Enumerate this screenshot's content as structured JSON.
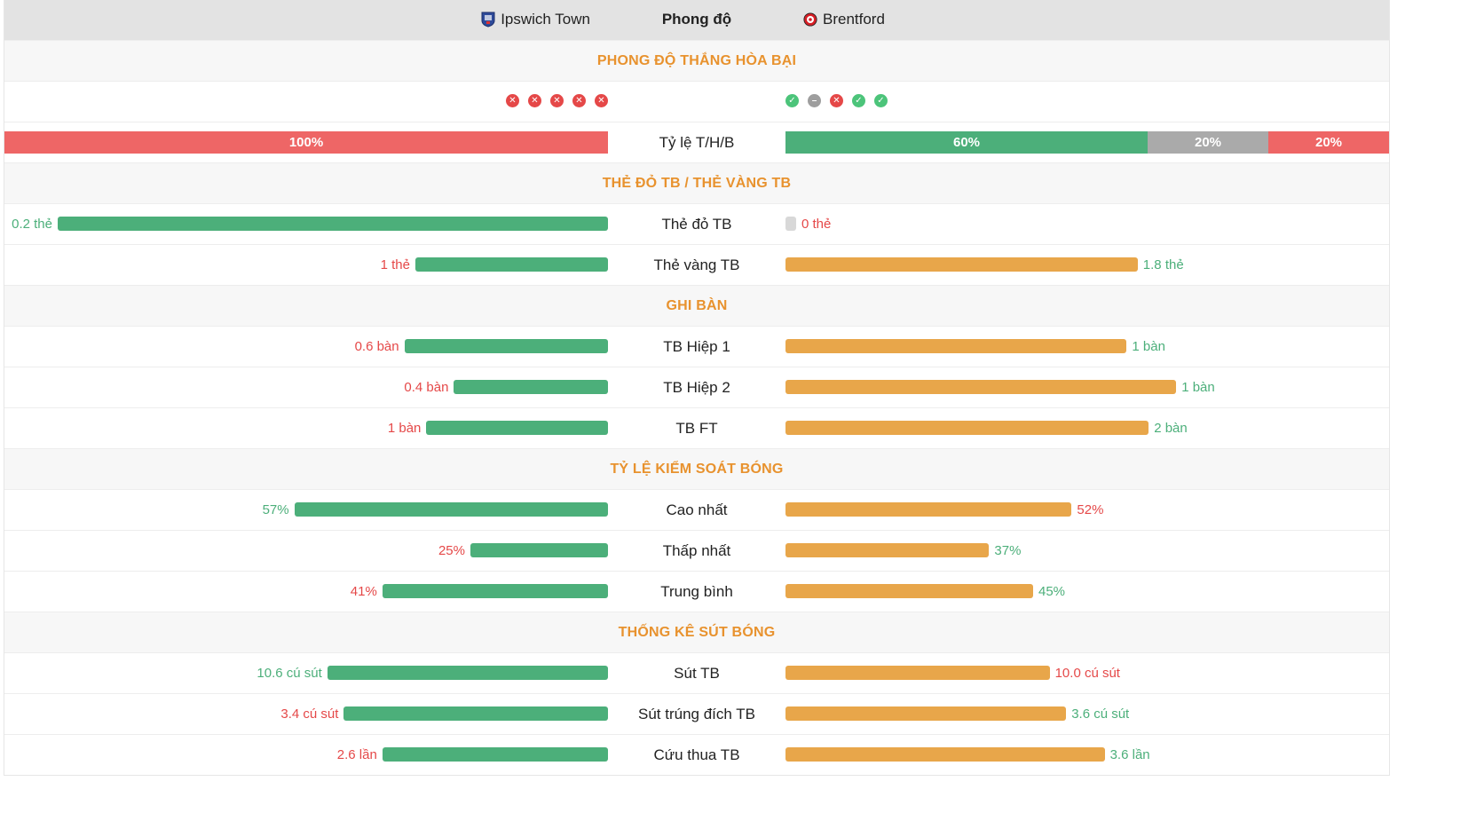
{
  "header": {
    "home_team": "Ipswich Town",
    "center_title": "Phong độ",
    "away_team": "Brentford"
  },
  "colors": {
    "accent_orange": "#e8922e",
    "bar_green": "#4caf7a",
    "bar_orange": "#e8a64a",
    "value_red": "#e54848",
    "loss_red": "#ee6666",
    "draw_grey": "#aaaaaa"
  },
  "form": {
    "section_title": "PHONG ĐỘ THẮNG HÒA BẠI",
    "home": [
      "L",
      "L",
      "L",
      "L",
      "L"
    ],
    "away": [
      "W",
      "D",
      "L",
      "W",
      "W"
    ],
    "ratio_label": "Tỷ lệ T/H/B",
    "home_ratio": [
      {
        "result": "L",
        "percent": 100,
        "label": "100%"
      }
    ],
    "away_ratio": [
      {
        "result": "W",
        "percent": 60,
        "label": "60%"
      },
      {
        "result": "D",
        "percent": 20,
        "label": "20%"
      },
      {
        "result": "L",
        "percent": 20,
        "label": "20%"
      }
    ]
  },
  "sections": [
    {
      "title": "THẺ ĐỎ TB / THẺ VÀNG TB",
      "rows": [
        {
          "label": "Thẻ đỏ TB",
          "home": {
            "text": "0.2 thẻ",
            "fraction": 1.0,
            "color": "green"
          },
          "away": {
            "text": "0 thẻ",
            "fraction": 0.0,
            "color": "red"
          }
        },
        {
          "label": "Thẻ vàng TB",
          "home": {
            "text": "1 thẻ",
            "fraction": 0.35,
            "color": "red"
          },
          "away": {
            "text": "1.8 thẻ",
            "fraction": 0.64,
            "color": "green"
          }
        }
      ]
    },
    {
      "title": "GHI BÀN",
      "rows": [
        {
          "label": "TB Hiệp 1",
          "home": {
            "text": "0.6 bàn",
            "fraction": 0.37,
            "color": "red"
          },
          "away": {
            "text": "1 bàn",
            "fraction": 0.62,
            "color": "green"
          }
        },
        {
          "label": "TB Hiệp 2",
          "home": {
            "text": "0.4 bàn",
            "fraction": 0.28,
            "color": "red"
          },
          "away": {
            "text": "1 bàn",
            "fraction": 0.71,
            "color": "green"
          }
        },
        {
          "label": "TB FT",
          "home": {
            "text": "1 bàn",
            "fraction": 0.33,
            "color": "red"
          },
          "away": {
            "text": "2 bàn",
            "fraction": 0.66,
            "color": "green"
          }
        }
      ]
    },
    {
      "title": "TỶ LỆ KIỂM SOÁT BÓNG",
      "rows": [
        {
          "label": "Cao nhất",
          "home": {
            "text": "57%",
            "fraction": 0.57,
            "color": "green"
          },
          "away": {
            "text": "52%",
            "fraction": 0.52,
            "color": "red"
          }
        },
        {
          "label": "Thấp nhất",
          "home": {
            "text": "25%",
            "fraction": 0.25,
            "color": "red"
          },
          "away": {
            "text": "37%",
            "fraction": 0.37,
            "color": "green"
          }
        },
        {
          "label": "Trung bình",
          "home": {
            "text": "41%",
            "fraction": 0.41,
            "color": "red"
          },
          "away": {
            "text": "45%",
            "fraction": 0.45,
            "color": "green"
          }
        }
      ]
    },
    {
      "title": "THỐNG KÊ SÚT BÓNG",
      "rows": [
        {
          "label": "Sút TB",
          "home": {
            "text": "10.6 cú sút",
            "fraction": 0.51,
            "color": "green"
          },
          "away": {
            "text": "10.0 cú sút",
            "fraction": 0.48,
            "color": "red"
          }
        },
        {
          "label": "Sút trúng đích TB",
          "home": {
            "text": "3.4 cú sút",
            "fraction": 0.48,
            "color": "red"
          },
          "away": {
            "text": "3.6 cú sút",
            "fraction": 0.51,
            "color": "green"
          }
        },
        {
          "label": "Cứu thua TB",
          "home": {
            "text": "2.6 lần",
            "fraction": 0.41,
            "color": "red"
          },
          "away": {
            "text": "3.6 lần",
            "fraction": 0.58,
            "color": "green"
          }
        }
      ]
    }
  ]
}
